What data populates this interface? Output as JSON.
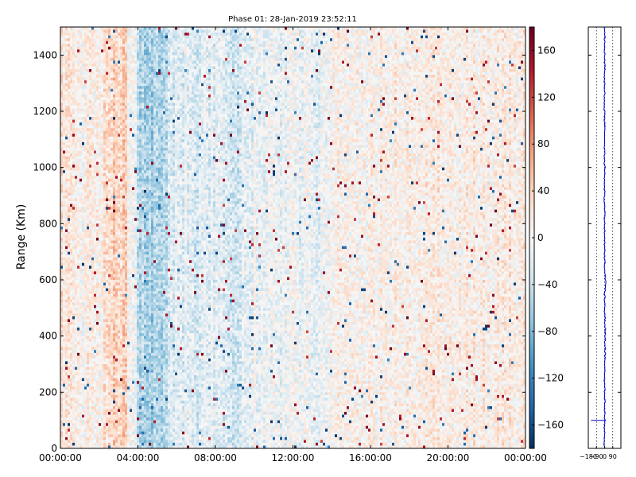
{
  "chart_data": {
    "type": "heatmap",
    "title": "Phase 01: 28-Jan-2019 23:52:11",
    "ylabel": "Range (Km)",
    "xlabel": "",
    "x_ticks": [
      "00:00:00",
      "04:00:00",
      "08:00:00",
      "12:00:00",
      "16:00:00",
      "20:00:00",
      "00:00:00"
    ],
    "x_range_hours": [
      0,
      24
    ],
    "y_ticks": [
      0,
      200,
      400,
      600,
      800,
      1000,
      1200,
      1400
    ],
    "ylim": [
      0,
      1500
    ],
    "colorbar": {
      "range": [
        -180,
        180
      ],
      "ticks": [
        "160",
        "120",
        "80",
        "40",
        "0",
        "−40",
        "−80",
        "−120",
        "−160"
      ],
      "tick_values": [
        160,
        120,
        80,
        40,
        0,
        -40,
        -80,
        -120,
        -160
      ],
      "colormap": "RdBu_r",
      "colors": [
        "#053061",
        "#2166ac",
        "#4393c3",
        "#92c5de",
        "#d1e5f0",
        "#f7f7f7",
        "#fddbc7",
        "#f4a582",
        "#d6604d",
        "#b2182b",
        "#67001f"
      ]
    },
    "column_bias_degrees": [
      {
        "from_hour": 0.0,
        "to_hour": 1.0,
        "mean": 18
      },
      {
        "from_hour": 1.0,
        "to_hour": 2.2,
        "mean": 8
      },
      {
        "from_hour": 2.2,
        "to_hour": 3.4,
        "mean": 40
      },
      {
        "from_hour": 3.4,
        "to_hour": 4.0,
        "mean": 5
      },
      {
        "from_hour": 4.0,
        "to_hour": 5.6,
        "mean": -55
      },
      {
        "from_hour": 5.6,
        "to_hour": 8.0,
        "mean": -20
      },
      {
        "from_hour": 8.0,
        "to_hour": 10.0,
        "mean": -25
      },
      {
        "from_hour": 10.0,
        "to_hour": 14.0,
        "mean": -8
      },
      {
        "from_hour": 14.0,
        "to_hour": 17.0,
        "mean": 5
      },
      {
        "from_hour": 17.0,
        "to_hour": 24.0,
        "mean": 12
      }
    ],
    "side_panel": {
      "type": "line",
      "x_ticks": [
        "−180",
        "−90",
        "0",
        "90"
      ],
      "x_tick_values": [
        -180,
        -90,
        0,
        90
      ],
      "xlim": [
        -180,
        180
      ],
      "ylim": [
        0,
        1500
      ],
      "line_color": "#0000cc",
      "mean_phase_degrees": 0,
      "low_range_excursion": {
        "range_km": 100,
        "phase_degrees": -150
      }
    }
  }
}
